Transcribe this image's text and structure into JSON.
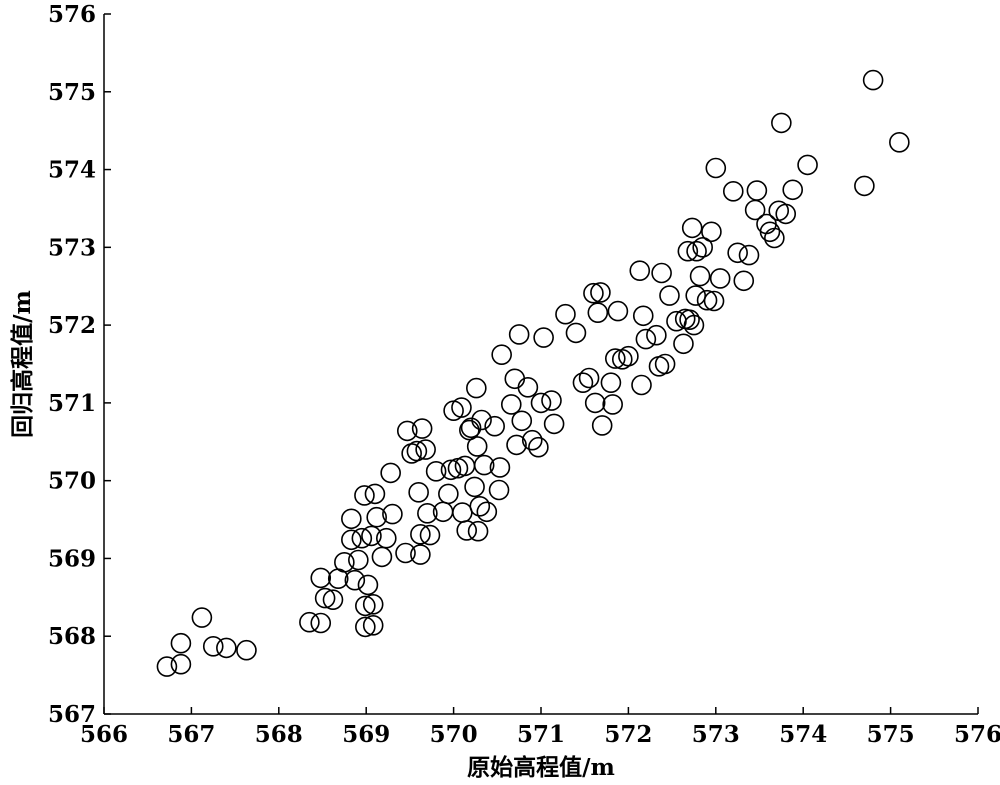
{
  "chart_data": {
    "type": "scatter",
    "title": "",
    "xlabel": "原始高程值/m",
    "ylabel": "回归高程值/m",
    "xlim": [
      566,
      576
    ],
    "ylim": [
      567,
      576
    ],
    "xticks": [
      566,
      567,
      568,
      569,
      570,
      571,
      572,
      573,
      574,
      575,
      576
    ],
    "yticks": [
      567,
      568,
      569,
      570,
      571,
      572,
      573,
      574,
      575,
      576
    ],
    "grid": false,
    "marker": "open-circle",
    "series": [
      {
        "points": [
          [
            566.72,
            567.61
          ],
          [
            566.88,
            567.64
          ],
          [
            566.88,
            567.91
          ],
          [
            567.12,
            568.24
          ],
          [
            567.25,
            567.87
          ],
          [
            567.4,
            567.85
          ],
          [
            567.63,
            567.82
          ],
          [
            568.35,
            568.18
          ],
          [
            568.48,
            568.17
          ],
          [
            568.48,
            568.75
          ],
          [
            568.53,
            568.49
          ],
          [
            568.62,
            568.47
          ],
          [
            568.68,
            568.74
          ],
          [
            568.75,
            568.95
          ],
          [
            568.83,
            569.24
          ],
          [
            568.83,
            569.51
          ],
          [
            568.87,
            568.72
          ],
          [
            568.91,
            568.98
          ],
          [
            568.95,
            569.26
          ],
          [
            568.98,
            569.81
          ],
          [
            568.99,
            568.12
          ],
          [
            568.99,
            568.39
          ],
          [
            569.02,
            568.66
          ],
          [
            569.06,
            569.29
          ],
          [
            569.08,
            568.14
          ],
          [
            569.08,
            568.41
          ],
          [
            569.1,
            569.83
          ],
          [
            569.12,
            569.53
          ],
          [
            569.18,
            569.02
          ],
          [
            569.23,
            569.26
          ],
          [
            569.28,
            570.1
          ],
          [
            569.3,
            569.57
          ],
          [
            569.45,
            569.07
          ],
          [
            569.47,
            570.64
          ],
          [
            569.52,
            570.35
          ],
          [
            569.58,
            570.38
          ],
          [
            569.6,
            569.85
          ],
          [
            569.62,
            569.31
          ],
          [
            569.62,
            569.05
          ],
          [
            569.64,
            570.67
          ],
          [
            569.68,
            570.4
          ],
          [
            569.7,
            569.58
          ],
          [
            569.73,
            569.3
          ],
          [
            569.8,
            570.12
          ],
          [
            569.88,
            569.6
          ],
          [
            569.94,
            569.83
          ],
          [
            569.97,
            570.14
          ],
          [
            570.0,
            570.9
          ],
          [
            570.05,
            570.16
          ],
          [
            570.09,
            570.94
          ],
          [
            570.1,
            569.59
          ],
          [
            570.13,
            570.19
          ],
          [
            570.15,
            569.36
          ],
          [
            570.18,
            570.65
          ],
          [
            570.2,
            570.68
          ],
          [
            570.24,
            569.92
          ],
          [
            570.26,
            571.19
          ],
          [
            570.27,
            570.44
          ],
          [
            570.28,
            569.35
          ],
          [
            570.3,
            569.67
          ],
          [
            570.32,
            570.78
          ],
          [
            570.35,
            570.2
          ],
          [
            570.38,
            569.6
          ],
          [
            570.47,
            570.7
          ],
          [
            570.52,
            569.88
          ],
          [
            570.53,
            570.17
          ],
          [
            570.55,
            571.62
          ],
          [
            570.66,
            570.98
          ],
          [
            570.7,
            571.31
          ],
          [
            570.72,
            570.46
          ],
          [
            570.75,
            571.88
          ],
          [
            570.78,
            570.77
          ],
          [
            570.85,
            571.2
          ],
          [
            570.9,
            570.52
          ],
          [
            570.97,
            570.43
          ],
          [
            571.0,
            571.0
          ],
          [
            571.03,
            571.84
          ],
          [
            571.12,
            571.03
          ],
          [
            571.15,
            570.73
          ],
          [
            571.28,
            572.14
          ],
          [
            571.4,
            571.9
          ],
          [
            571.48,
            571.26
          ],
          [
            571.55,
            571.32
          ],
          [
            571.6,
            572.41
          ],
          [
            571.62,
            571.0
          ],
          [
            571.65,
            572.16
          ],
          [
            571.68,
            572.42
          ],
          [
            571.7,
            570.71
          ],
          [
            571.8,
            571.26
          ],
          [
            571.82,
            570.98
          ],
          [
            571.85,
            571.57
          ],
          [
            571.88,
            572.18
          ],
          [
            571.93,
            571.56
          ],
          [
            572.0,
            571.6
          ],
          [
            572.13,
            572.7
          ],
          [
            572.15,
            571.23
          ],
          [
            572.17,
            572.12
          ],
          [
            572.2,
            571.82
          ],
          [
            572.32,
            571.87
          ],
          [
            572.35,
            571.47
          ],
          [
            572.38,
            572.67
          ],
          [
            572.42,
            571.5
          ],
          [
            572.47,
            572.38
          ],
          [
            572.55,
            572.05
          ],
          [
            572.63,
            571.76
          ],
          [
            572.65,
            572.08
          ],
          [
            572.68,
            572.95
          ],
          [
            572.7,
            572.07
          ],
          [
            572.73,
            573.25
          ],
          [
            572.75,
            572.0
          ],
          [
            572.77,
            572.38
          ],
          [
            572.78,
            572.95
          ],
          [
            572.82,
            572.63
          ],
          [
            572.85,
            573.0
          ],
          [
            572.9,
            572.32
          ],
          [
            572.95,
            573.2
          ],
          [
            572.98,
            572.31
          ],
          [
            573.0,
            574.02
          ],
          [
            573.05,
            572.6
          ],
          [
            573.2,
            573.72
          ],
          [
            573.25,
            572.93
          ],
          [
            573.32,
            572.57
          ],
          [
            573.38,
            572.9
          ],
          [
            573.45,
            573.48
          ],
          [
            573.47,
            573.73
          ],
          [
            573.58,
            573.3
          ],
          [
            573.62,
            573.2
          ],
          [
            573.67,
            573.12
          ],
          [
            573.72,
            573.47
          ],
          [
            573.75,
            574.6
          ],
          [
            573.8,
            573.43
          ],
          [
            573.88,
            573.74
          ],
          [
            574.05,
            574.06
          ],
          [
            574.7,
            573.79
          ],
          [
            574.8,
            575.15
          ],
          [
            575.1,
            574.35
          ]
        ]
      }
    ]
  }
}
